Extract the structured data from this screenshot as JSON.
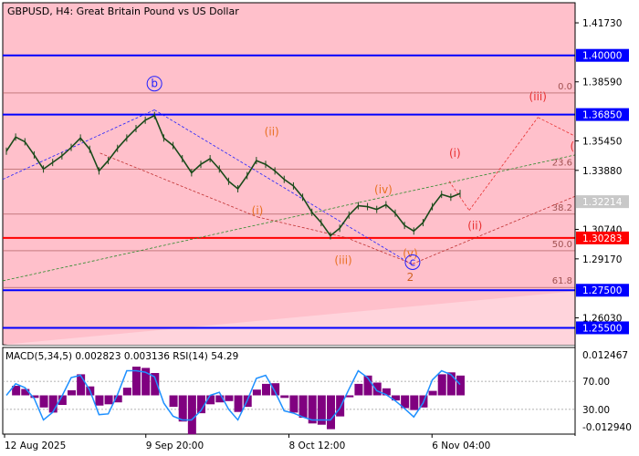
{
  "chart_data": {
    "type": "candlestick",
    "symbol": "GBPUSD",
    "timeframe": "H4",
    "header": "GBPUSD, H4:  Great Britain Pound vs US Dollar",
    "price_axis": {
      "range": [
        1.246,
        1.428
      ],
      "tick_labels": [
        "1.41730",
        "1.38590",
        "1.35450",
        "1.33880",
        "1.30740",
        "1.29170",
        "1.26030"
      ]
    },
    "time_axis": {
      "labels": [
        {
          "text": "12 Aug 2025",
          "index": 0
        },
        {
          "text": "9 Sep 20:00",
          "index": 0.25
        },
        {
          "text": "8 Oct 12:00",
          "index": 0.5
        },
        {
          "text": "6 Nov 04:00",
          "index": 0.75
        }
      ]
    },
    "series_close": [
      1.349,
      1.3565,
      1.354,
      1.347,
      1.3395,
      1.343,
      1.3465,
      1.351,
      1.356,
      1.35,
      1.3385,
      1.344,
      1.3505,
      1.356,
      1.361,
      1.3655,
      1.368,
      1.356,
      1.352,
      1.345,
      1.3375,
      1.342,
      1.345,
      1.3395,
      1.333,
      1.329,
      1.336,
      1.344,
      1.342,
      1.3385,
      1.334,
      1.3305,
      1.3245,
      1.3165,
      1.311,
      1.304,
      1.308,
      1.315,
      1.32,
      1.3195,
      1.318,
      1.3205,
      1.316,
      1.3095,
      1.3065,
      1.311,
      1.3195,
      1.326,
      1.3245,
      1.3265
    ],
    "horizontal_levels": [
      {
        "price": 1.4,
        "label": "1.40000",
        "color": "#0000ff",
        "kind": "level"
      },
      {
        "price": 1.3685,
        "label": "1.36850",
        "color": "#0000ff",
        "kind": "level"
      },
      {
        "price": 1.30283,
        "label": "1.30283",
        "color": "#ff0000",
        "kind": "level"
      },
      {
        "price": 1.275,
        "label": "1.27500",
        "color": "#0000ff",
        "kind": "level"
      },
      {
        "price": 1.255,
        "label": "1.25500",
        "color": "#0000ff",
        "kind": "level"
      }
    ],
    "current_price": {
      "price": 1.32214,
      "label": "1.32214",
      "color": "#c8c8c8"
    },
    "fibonacci": [
      {
        "ratio_label": "0.0",
        "price": 1.38
      },
      {
        "ratio_label": "23.6",
        "price": 1.3395
      },
      {
        "ratio_label": "38.2",
        "price": 1.3155
      },
      {
        "ratio_label": "50.0",
        "price": 1.296
      },
      {
        "ratio_label": "61.8",
        "price": 1.2765
      }
    ],
    "wave_labels": [
      {
        "text": "b",
        "index": 0.265,
        "price": 1.383,
        "circled": true,
        "color": "#2020ff"
      },
      {
        "text": "(ii)",
        "index": 0.47,
        "price": 1.3575,
        "color": "#e87020"
      },
      {
        "text": "(i)",
        "index": 0.445,
        "price": 1.3155,
        "color": "#e87020"
      },
      {
        "text": "(iii)",
        "index": 0.595,
        "price": 1.289,
        "color": "#e87020"
      },
      {
        "text": "(iv)",
        "index": 0.665,
        "price": 1.3265,
        "color": "#e87020"
      },
      {
        "text": "(v)",
        "index": 0.712,
        "price": 1.2925,
        "color": "#e87020"
      },
      {
        "text": "c",
        "index": 0.716,
        "price": 1.288,
        "circled": true,
        "color": "#2020ff"
      },
      {
        "text": "2",
        "index": 0.712,
        "price": 1.28,
        "color": "#d06020"
      },
      {
        "text": "(i)",
        "index": 0.79,
        "price": 1.346,
        "color": "#e83030"
      },
      {
        "text": "(ii)",
        "index": 0.825,
        "price": 1.3075,
        "color": "#e83030"
      },
      {
        "text": "(iii)",
        "index": 0.935,
        "price": 1.376,
        "color": "#e83030"
      },
      {
        "text": "(",
        "index": 0.995,
        "price": 1.3495,
        "color": "#e83030"
      }
    ],
    "indicator": {
      "header": "MACD(5,34,5) 0.002823 0.003136 RSI(14) 54.29",
      "tick_labels": [
        "0.012467",
        "70.00",
        "30.00",
        "-0.012940"
      ],
      "rsi_levels": [
        70,
        30
      ]
    }
  }
}
